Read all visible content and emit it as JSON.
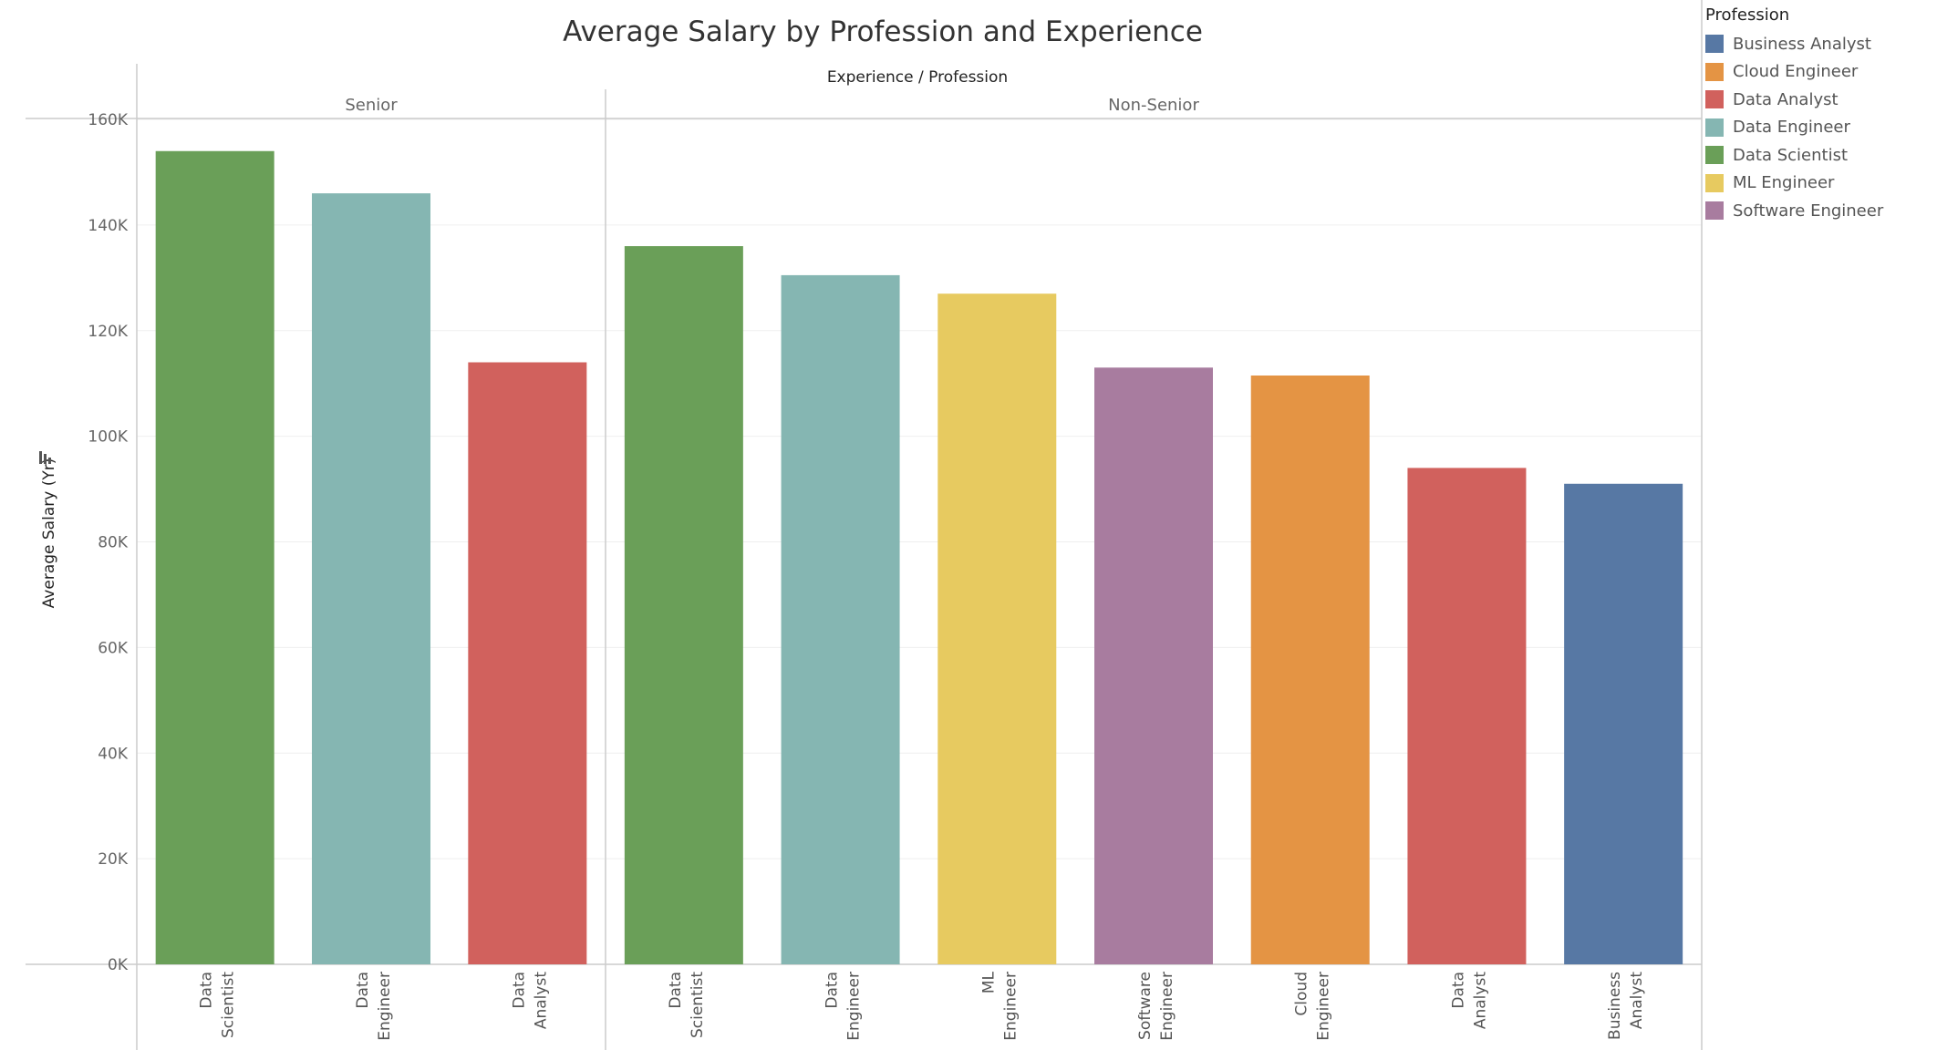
{
  "chart_data": {
    "type": "bar",
    "title": "Average Salary by Profession and Experience",
    "column_header": "Experience / Profession",
    "ylabel": "Average Salary (Yr)",
    "ylim": [
      0,
      160000
    ],
    "yticks": [
      0,
      20000,
      40000,
      60000,
      80000,
      100000,
      120000,
      140000,
      160000
    ],
    "ytick_labels": [
      "0K",
      "20K",
      "40K",
      "60K",
      "80K",
      "100K",
      "120K",
      "140K",
      "160K"
    ],
    "grid": true,
    "legend_position": "top-right",
    "legend_title": "Profession",
    "legend": [
      {
        "name": "Business Analyst",
        "color": "#5778a4"
      },
      {
        "name": "Cloud Engineer",
        "color": "#e49444"
      },
      {
        "name": "Data Analyst",
        "color": "#d1615d"
      },
      {
        "name": "Data Engineer",
        "color": "#85b6b2"
      },
      {
        "name": "Data Scientist",
        "color": "#6a9f58"
      },
      {
        "name": "ML Engineer",
        "color": "#e7ca60"
      },
      {
        "name": "Software Engineer",
        "color": "#a87c9f"
      }
    ],
    "panels": [
      {
        "label": "Senior",
        "bars": [
          {
            "category": "Data Scientist",
            "lines": [
              "Data",
              "Scientist"
            ],
            "value": 154000
          },
          {
            "category": "Data Engineer",
            "lines": [
              "Data",
              "Engineer"
            ],
            "value": 146000
          },
          {
            "category": "Data Analyst",
            "lines": [
              "Data",
              "Analyst"
            ],
            "value": 114000
          }
        ]
      },
      {
        "label": "Non-Senior",
        "bars": [
          {
            "category": "Data Scientist",
            "lines": [
              "Data",
              "Scientist"
            ],
            "value": 136000
          },
          {
            "category": "Data Engineer",
            "lines": [
              "Data",
              "Engineer"
            ],
            "value": 130500
          },
          {
            "category": "ML Engineer",
            "lines": [
              "ML",
              "Engineer"
            ],
            "value": 127000
          },
          {
            "category": "Software Engineer",
            "lines": [
              "Software",
              "Engineer"
            ],
            "value": 113000
          },
          {
            "category": "Cloud Engineer",
            "lines": [
              "Cloud",
              "Engineer"
            ],
            "value": 111500
          },
          {
            "category": "Data Analyst",
            "lines": [
              "Data",
              "Analyst"
            ],
            "value": 94000
          },
          {
            "category": "Business Analyst",
            "lines": [
              "Business",
              "Analyst"
            ],
            "value": 91000
          }
        ]
      }
    ]
  }
}
